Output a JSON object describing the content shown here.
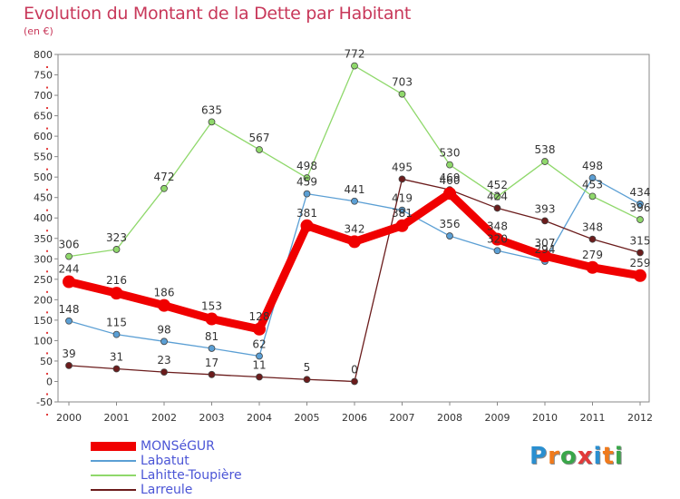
{
  "header": {
    "title": "Evolution du Montant de la Dette par Habitant",
    "subtitle": "(en €)"
  },
  "logo": {
    "text": "Proxiti",
    "colors": [
      "#2a8fd0",
      "#f07a1c",
      "#3aa64a",
      "#e23a3a",
      "#2a8fd0",
      "#f07a1c",
      "#3aa64a"
    ]
  },
  "chart_data": {
    "type": "line",
    "title": "Evolution du Montant de la Dette par Habitant",
    "subtitle": "(en €)",
    "xlabel": "",
    "ylabel": "",
    "x": [
      "2000",
      "2001",
      "2002",
      "2003",
      "2004",
      "2005",
      "2006",
      "2007",
      "2008",
      "2009",
      "2010",
      "2011",
      "2012"
    ],
    "ylim": [
      -50,
      800
    ],
    "yticks": [
      -50,
      0,
      50,
      100,
      150,
      200,
      250,
      300,
      350,
      400,
      450,
      500,
      550,
      600,
      650,
      700,
      750,
      800
    ],
    "grid": false,
    "legend_position": "bottom-left",
    "series": [
      {
        "name": "MONSéGUR",
        "color": "#f00000",
        "values": [
          244,
          216,
          186,
          153,
          128,
          381,
          342,
          381,
          460,
          348,
          307,
          279,
          259
        ]
      },
      {
        "name": "Labatut",
        "color": "#5b9fd4",
        "values": [
          148,
          115,
          98,
          81,
          62,
          459,
          441,
          419,
          356,
          320,
          294,
          498,
          434
        ]
      },
      {
        "name": "Lahitte-Toupière",
        "color": "#8fd86b",
        "values": [
          306,
          323,
          472,
          635,
          567,
          498,
          772,
          703,
          530,
          452,
          538,
          453,
          396
        ]
      },
      {
        "name": "Larreule",
        "color": "#6b1c1c",
        "values": [
          39,
          31,
          23,
          17,
          11,
          5,
          0,
          495,
          469,
          424,
          393,
          348,
          315
        ]
      }
    ]
  }
}
